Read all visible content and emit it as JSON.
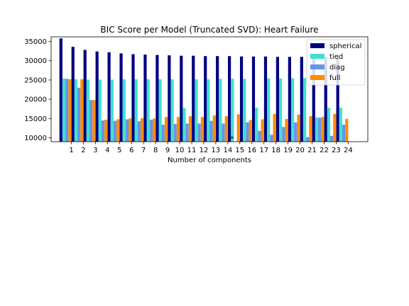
{
  "chart_data": {
    "type": "bar",
    "title": "BIC Score per Model (Truncated SVD): Heart Failure",
    "xlabel": "Number of components",
    "ylabel": "",
    "categories": [
      "1",
      "2",
      "3",
      "4",
      "5",
      "6",
      "7",
      "8",
      "9",
      "10",
      "11",
      "12",
      "13",
      "14",
      "15",
      "16",
      "17",
      "18",
      "19",
      "20",
      "21",
      "22",
      "23",
      "24"
    ],
    "ylim": [
      9000,
      36200
    ],
    "yticks": [
      10000,
      15000,
      20000,
      25000,
      30000,
      35000
    ],
    "ytick_labels": [
      "10000",
      "15000",
      "20000",
      "25000",
      "30000",
      "35000"
    ],
    "legend_position": "top-right",
    "grid": false,
    "series": [
      {
        "name": "spherical",
        "color": "#000080",
        "values": [
          35800,
          33600,
          32800,
          32400,
          32200,
          31900,
          31700,
          31600,
          31500,
          31400,
          31300,
          31300,
          31200,
          31200,
          31200,
          31100,
          31100,
          31100,
          31000,
          31000,
          31000,
          31000,
          31000,
          31000
        ]
      },
      {
        "name": "tied",
        "color": "#40e0d0",
        "values": [
          25400,
          25200,
          25100,
          25100,
          25100,
          25200,
          25200,
          25200,
          25200,
          25200,
          17700,
          25200,
          25200,
          25300,
          25300,
          25300,
          17800,
          25400,
          25400,
          25500,
          25500,
          15300,
          17800,
          17800
        ]
      },
      {
        "name": "diag",
        "color": "#6495ed",
        "values": [
          25300,
          23000,
          19800,
          14500,
          14400,
          14800,
          14300,
          14700,
          13400,
          13600,
          13700,
          13700,
          14400,
          13700,
          8900,
          14000,
          11800,
          10800,
          12800,
          14000,
          10200,
          15200,
          10500,
          13400
        ]
      },
      {
        "name": "full",
        "color": "#ff8c00",
        "values": [
          25200,
          25200,
          19800,
          14700,
          14800,
          15000,
          15100,
          15000,
          15400,
          15400,
          15600,
          15400,
          15800,
          15600,
          16100,
          14600,
          14800,
          16200,
          14900,
          16000,
          15600,
          15400,
          16200,
          14900
        ]
      }
    ],
    "annotation": {
      "text": "*",
      "category": "15",
      "value": 10100
    }
  }
}
